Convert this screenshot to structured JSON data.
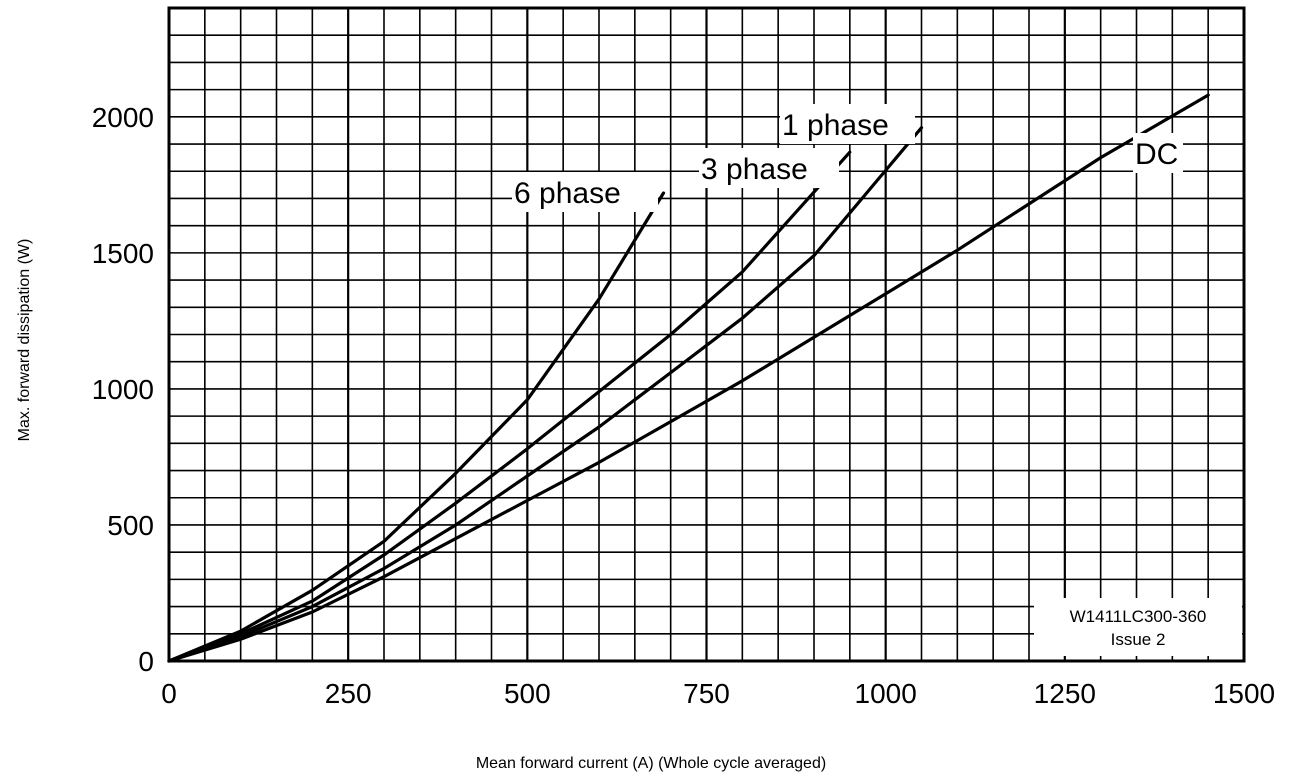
{
  "chart_data": {
    "type": "line",
    "xlabel": "Mean forward current (A) (Whole cycle averaged)",
    "ylabel": "Max. forward dissipation (W)",
    "xlim": [
      0,
      1500
    ],
    "ylim": [
      0,
      2400
    ],
    "x_ticks": [
      "0",
      "250",
      "500",
      "750",
      "1000",
      "1250",
      "1500"
    ],
    "y_ticks": [
      "0",
      "500",
      "1000",
      "1500",
      "2000"
    ],
    "grid": true,
    "series": [
      {
        "name": "6 phase",
        "x": [
          0,
          100,
          200,
          300,
          400,
          500,
          600,
          690
        ],
        "y": [
          0,
          110,
          260,
          440,
          690,
          960,
          1330,
          1720
        ]
      },
      {
        "name": "3 phase",
        "x": [
          0,
          100,
          200,
          300,
          400,
          500,
          600,
          700,
          800,
          950
        ],
        "y": [
          0,
          100,
          220,
          390,
          580,
          780,
          990,
          1200,
          1430,
          1870
        ]
      },
      {
        "name": "1 phase",
        "x": [
          0,
          100,
          200,
          300,
          400,
          500,
          600,
          700,
          800,
          900,
          1050
        ],
        "y": [
          0,
          90,
          200,
          340,
          500,
          680,
          860,
          1060,
          1260,
          1490,
          1960
        ]
      },
      {
        "name": "DC",
        "x": [
          0,
          100,
          200,
          300,
          400,
          500,
          600,
          700,
          800,
          900,
          1000,
          1100,
          1200,
          1300,
          1450
        ],
        "y": [
          0,
          80,
          180,
          310,
          450,
          590,
          730,
          880,
          1030,
          1190,
          1350,
          1510,
          1680,
          1850,
          2080
        ]
      }
    ],
    "annotation": [
      "W1411LC300-360",
      "Issue 2"
    ]
  }
}
